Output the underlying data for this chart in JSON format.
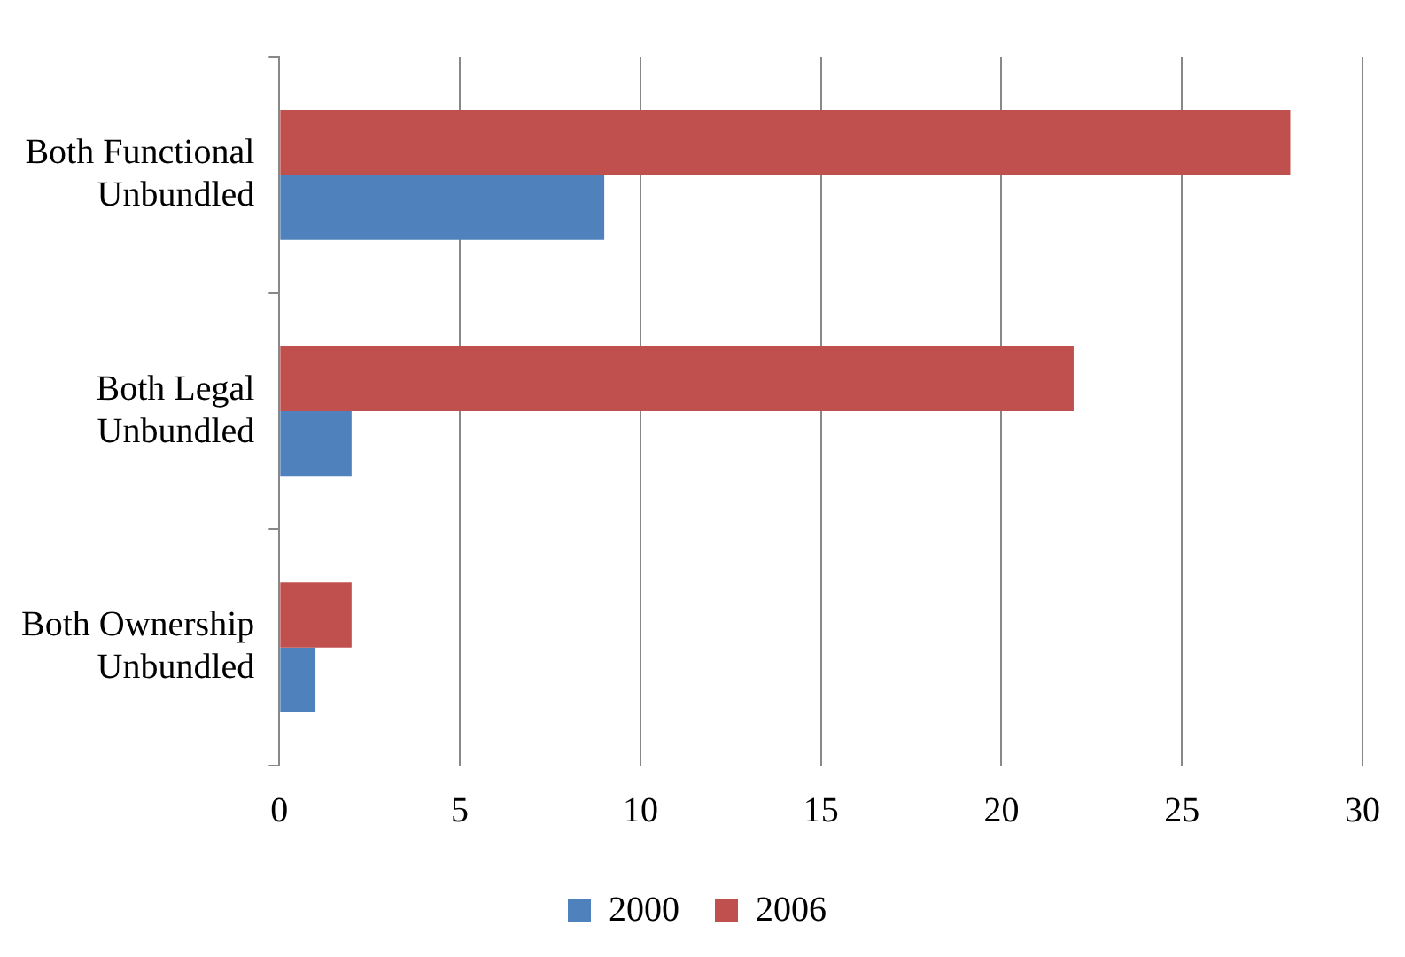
{
  "chart_data": {
    "type": "bar",
    "orientation": "horizontal",
    "categories": [
      "Both Functional Unbundled",
      "Both Legal Unbundled",
      "Both Ownership Unbundled"
    ],
    "series": [
      {
        "name": "2000",
        "color": "#4f81bd",
        "values": [
          9,
          2,
          1
        ]
      },
      {
        "name": "2006",
        "color": "#c0504d",
        "values": [
          28,
          22,
          2
        ]
      }
    ],
    "xlim": [
      0,
      30
    ],
    "xticks": [
      0,
      5,
      10,
      15,
      20,
      25,
      30
    ],
    "grid": "x",
    "legend": "bottom"
  }
}
